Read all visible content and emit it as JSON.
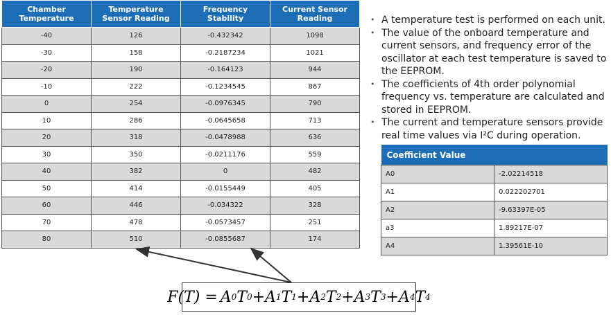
{
  "table": {
    "header": [
      "Chamber Temperature",
      "Temperature Sensor Reading",
      "Frequency Stability",
      "Current Sensor Reading"
    ],
    "rows": [
      [
        "-40",
        "126",
        "-0.432342",
        "1098"
      ],
      [
        "-30",
        "158",
        "-0.2187234",
        "1021"
      ],
      [
        "-20",
        "190",
        "-0.164123",
        "944"
      ],
      [
        "-10",
        "222",
        "-0.1234545",
        "867"
      ],
      [
        "0",
        "254",
        "-0.0976345",
        "790"
      ],
      [
        "10",
        "286",
        "-0.0645658",
        "713"
      ],
      [
        "20",
        "318",
        "-0.0478988",
        "636"
      ],
      [
        "30",
        "350",
        "-0.0211176",
        "559"
      ],
      [
        "40",
        "382",
        "0",
        "482"
      ],
      [
        "50",
        "414",
        "-0.0155449",
        "405"
      ],
      [
        "60",
        "446",
        "-0.034322",
        "328"
      ],
      [
        "70",
        "478",
        "-0.0573457",
        "251"
      ],
      [
        "80",
        "510",
        "-0.0855687",
        "174"
      ]
    ]
  },
  "bullets": [
    "A temperature test is performed on each unit.",
    "The value of the onboard temperature and current sensors, and frequency error of the oscillator at each test temperature is saved to the EEPROM.",
    "The coefficients of 4th order polynomial frequency vs. temperature are calculated and stored in EEPROM.",
    "The current and temperature sensors provide real time values via I²C during operation."
  ],
  "coefficients": {
    "header": "Coefficient Value",
    "rows": [
      [
        "A0",
        "-2.02214518"
      ],
      [
        "A1",
        "0.022202701"
      ],
      [
        "A2",
        "-9.63397E-05"
      ],
      [
        "a3",
        "1.89217E-07"
      ],
      [
        "A4",
        "1.39561E-10"
      ]
    ]
  },
  "formula": {
    "lhs": "F(T) =",
    "operator": "+",
    "terms": [
      {
        "coef": "A",
        "sub": "0",
        "var": "T",
        "sup": "0"
      },
      {
        "coef": "A",
        "sub": "1",
        "var": "T",
        "sup": "1"
      },
      {
        "coef": "A",
        "sub": "2",
        "var": "T",
        "sup": "2"
      },
      {
        "coef": "A",
        "sub": "3",
        "var": "T",
        "sup": "3"
      },
      {
        "coef": "A",
        "sub": "4",
        "var": "T",
        "sup": "4"
      }
    ]
  }
}
